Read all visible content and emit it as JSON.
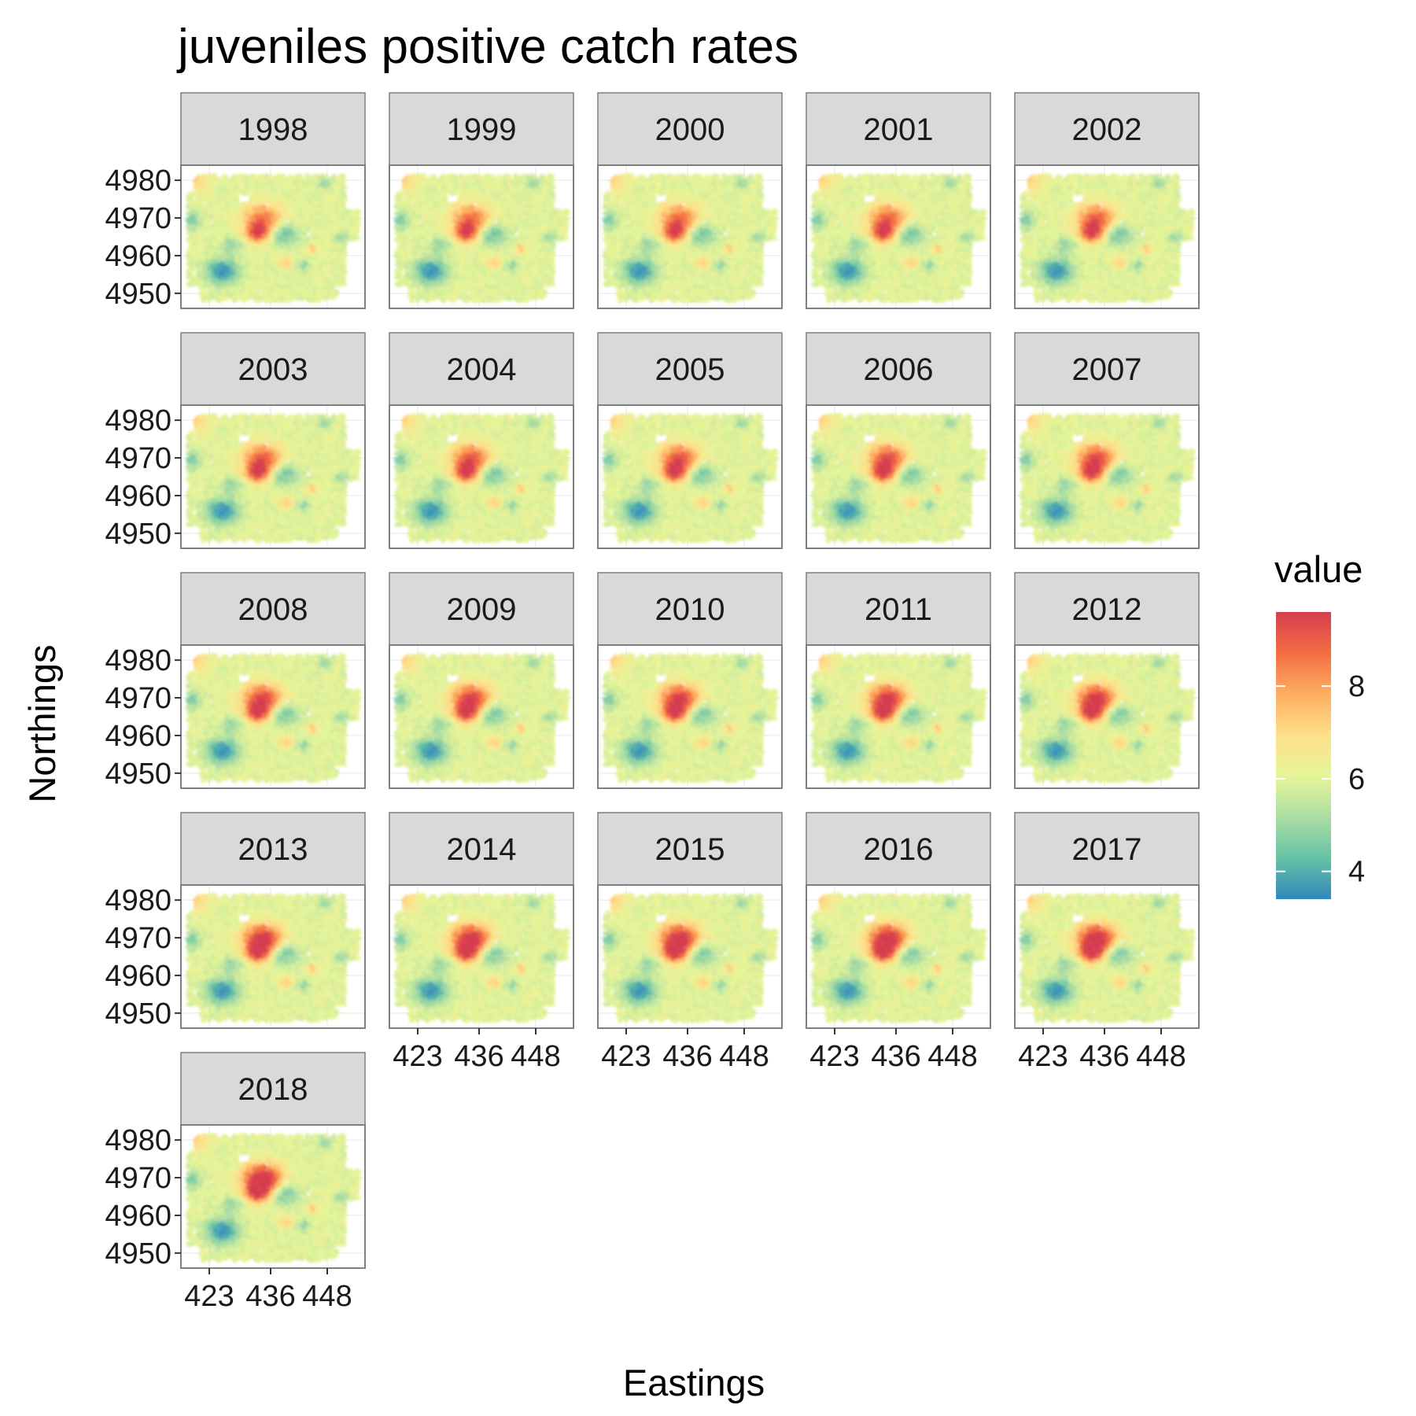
{
  "chart_data": {
    "type": "heatmap",
    "title": "juveniles positive catch rates",
    "xlabel": "Eastings",
    "ylabel": "Northings",
    "facet_years": [
      "1998",
      "1999",
      "2000",
      "2001",
      "2002",
      "2003",
      "2004",
      "2005",
      "2006",
      "2007",
      "2008",
      "2009",
      "2010",
      "2011",
      "2012",
      "2013",
      "2014",
      "2015",
      "2016",
      "2017",
      "2018"
    ],
    "x_ticks": [
      423,
      436,
      448
    ],
    "y_ticks": [
      4950,
      4960,
      4970,
      4980
    ],
    "xlim": [
      417,
      456
    ],
    "ylim": [
      4946,
      4984
    ],
    "legend": {
      "title": "value",
      "ticks": [
        4,
        6,
        8
      ],
      "range": [
        3.4,
        9.6
      ],
      "position": "right",
      "palette": [
        "#3288bd",
        "#66c2a5",
        "#abdda4",
        "#e6f598",
        "#fee08b",
        "#fdae61",
        "#f46d43",
        "#d53e4f"
      ]
    },
    "grid": true
  }
}
